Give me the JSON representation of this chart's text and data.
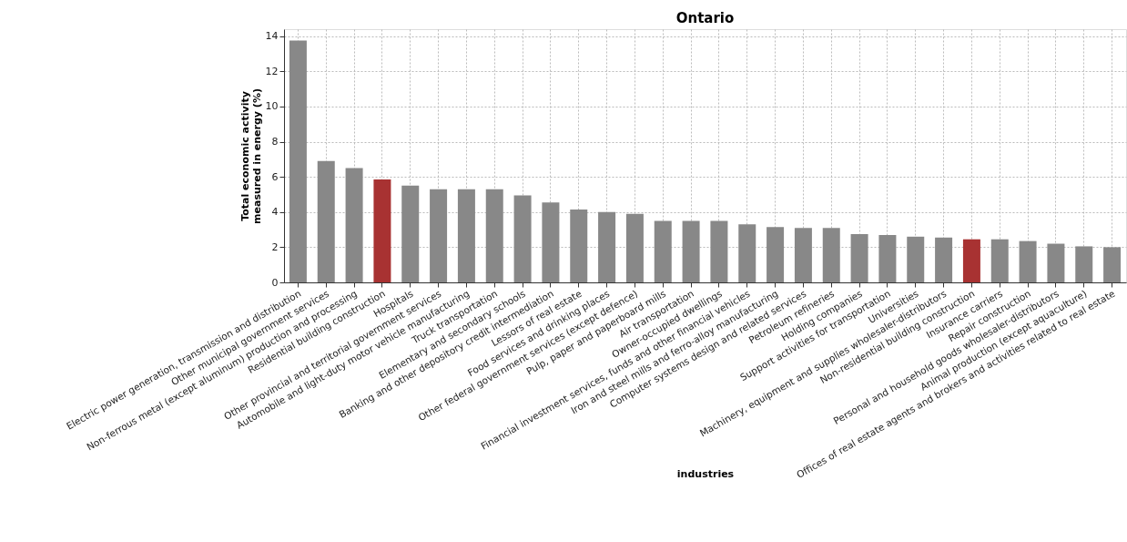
{
  "chart_data": {
    "type": "bar",
    "title": "Ontario",
    "xlabel": "industries",
    "ylabel": "Total economic activity\nmeasured in energy (%)",
    "categories": [
      "Electric power generation, transmission and distribution",
      "Other municipal government services",
      "Non-ferrous metal (except aluminum) production and processing",
      "Residential building construction",
      "Hospitals",
      "Other provincial and territorial government services",
      "Automobile and light-duty motor vehicle manufacturing",
      "Truck transportation",
      "Elementary and secondary schools",
      "Banking and other depository credit intermediation",
      "Lessors of real estate",
      "Food services and drinking places",
      "Other federal government services (except defence)",
      "Pulp, paper and paperboard mills",
      "Air transportation",
      "Owner-occupied dwellings",
      "Financial investment services, funds and other financial vehicles",
      "Iron and steel mills and ferro-alloy manufacturing",
      "Computer systems design and related services",
      "Petroleum refineries",
      "Holding companies",
      "Support activities for transportation",
      "Universities",
      "Machinery, equipment and supplies wholesaler-distributors",
      "Non-residential building construction",
      "Insurance carriers",
      "Repair construction",
      "Personal and household goods wholesaler-distributors",
      "Animal production (except aquaculture)",
      "Offices of real estate agents and brokers and activities related to real estate"
    ],
    "values": [
      13.75,
      6.9,
      6.5,
      5.85,
      5.5,
      5.3,
      5.3,
      5.3,
      4.95,
      4.55,
      4.15,
      4.0,
      3.9,
      3.5,
      3.5,
      3.5,
      3.3,
      3.15,
      3.1,
      3.1,
      2.75,
      2.7,
      2.6,
      2.55,
      2.45,
      2.45,
      2.35,
      2.2,
      2.05,
      2.0
    ],
    "colors": [
      "#888888",
      "#888888",
      "#888888",
      "#a83232",
      "#888888",
      "#888888",
      "#888888",
      "#888888",
      "#888888",
      "#888888",
      "#888888",
      "#888888",
      "#888888",
      "#888888",
      "#888888",
      "#888888",
      "#888888",
      "#888888",
      "#888888",
      "#888888",
      "#888888",
      "#888888",
      "#888888",
      "#888888",
      "#a83232",
      "#888888",
      "#888888",
      "#888888",
      "#888888",
      "#888888"
    ],
    "ylim": [
      0,
      14.4
    ],
    "yticks": [
      0,
      2,
      4,
      6,
      8,
      10,
      12,
      14
    ],
    "grid": true
  }
}
